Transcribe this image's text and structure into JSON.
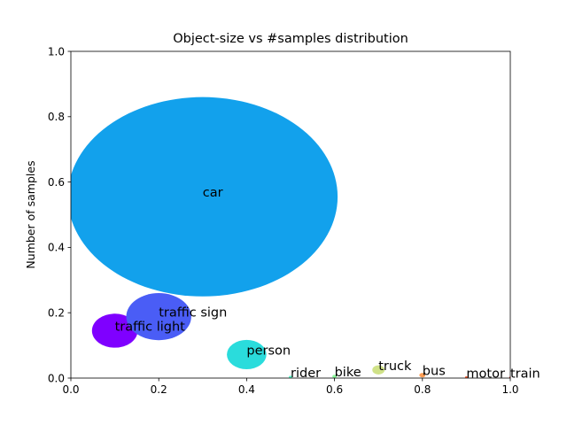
{
  "chart_data": {
    "type": "scatter",
    "title": "Object-size vs #samples distribution",
    "xlabel": "",
    "ylabel": "Number of samples",
    "xlim": [
      0.0,
      1.0
    ],
    "ylim": [
      0.0,
      1.0
    ],
    "xticks": [
      "0.0",
      "0.2",
      "0.4",
      "0.6",
      "0.8",
      "1.0"
    ],
    "yticks": [
      "0.0",
      "0.2",
      "0.4",
      "0.6",
      "0.8",
      "1.0"
    ],
    "grid": false,
    "points": [
      {
        "label": "traffic light",
        "x": 0.1,
        "y": 0.145,
        "size_rx": 0.052,
        "size_ry": 0.052,
        "color": "#7f00ff"
      },
      {
        "label": "traffic sign",
        "x": 0.2,
        "y": 0.188,
        "size_rx": 0.074,
        "size_ry": 0.072,
        "color": "#4a5df6"
      },
      {
        "label": "car",
        "x": 0.3,
        "y": 0.555,
        "size_rx": 0.307,
        "size_ry": 0.305,
        "color": "#12a1ec"
      },
      {
        "label": "person",
        "x": 0.4,
        "y": 0.072,
        "size_rx": 0.045,
        "size_ry": 0.045,
        "color": "#2adcdc"
      },
      {
        "label": "rider",
        "x": 0.5,
        "y": 0.003,
        "size_rx": 0.004,
        "size_ry": 0.004,
        "color": "#5cf5c8"
      },
      {
        "label": "bike",
        "x": 0.6,
        "y": 0.005,
        "size_rx": 0.005,
        "size_ry": 0.005,
        "color": "#8cfc9c"
      },
      {
        "label": "truck",
        "x": 0.7,
        "y": 0.025,
        "size_rx": 0.014,
        "size_ry": 0.014,
        "color": "#d0e288"
      },
      {
        "label": "bus",
        "x": 0.8,
        "y": 0.009,
        "size_rx": 0.007,
        "size_ry": 0.007,
        "color": "#ff9d54"
      },
      {
        "label": "motor",
        "x": 0.9,
        "y": 0.002,
        "size_rx": 0.003,
        "size_ry": 0.003,
        "color": "#ff5a2d"
      },
      {
        "label": "train",
        "x": 1.0,
        "y": 0.001,
        "size_rx": 0.002,
        "size_ry": 0.002,
        "color": "#ff1a0d"
      }
    ]
  }
}
